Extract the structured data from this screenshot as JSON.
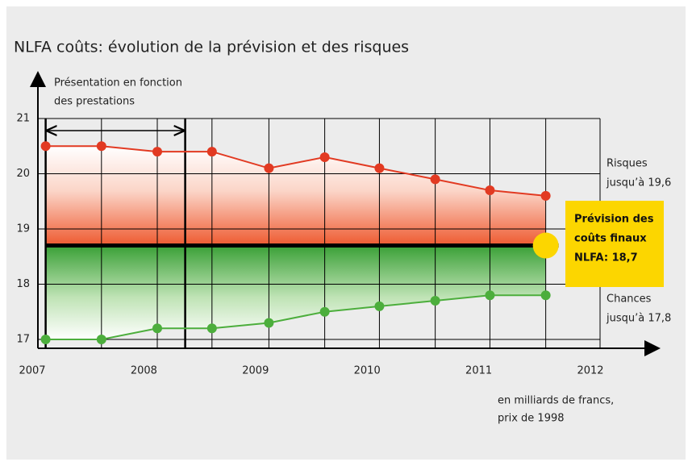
{
  "chart_data": {
    "type": "line",
    "title": "NLFA coûts: évolution de la prévision et des risques",
    "x": [
      2007.12,
      2007.62,
      2008.12,
      2008.61,
      2009.12,
      2009.62,
      2010.11,
      2010.61,
      2011.1,
      2011.6
    ],
    "series": [
      {
        "name": "Risques",
        "color": "#e23a22",
        "values": [
          20.5,
          20.5,
          20.4,
          20.4,
          20.1,
          20.3,
          20.1,
          19.9,
          19.7,
          19.6
        ]
      },
      {
        "name": "Chances",
        "color": "#4cae3c",
        "values": [
          17.0,
          17.0,
          17.2,
          17.2,
          17.3,
          17.5,
          17.6,
          17.7,
          17.8,
          17.8
        ]
      }
    ],
    "forecast": {
      "value": 18.7,
      "color": "#000000",
      "box_color": "#fcd600",
      "label_lines": [
        "Prévision des",
        "coûts finaux",
        "NLFA: 18,7"
      ]
    },
    "risk_label_lines": [
      "Risques",
      "jusqu’à 19,6"
    ],
    "chance_label_lines": [
      "Chances",
      "jusqu’à 17,8"
    ],
    "presentation": {
      "label_lines": [
        "Présentation en fonction",
        "des prestations"
      ],
      "span": [
        2007.12,
        2008.37
      ]
    },
    "unit_lines": [
      "en milliards de francs,",
      "prix de 1998"
    ],
    "xlim": [
      2007,
      2012
    ],
    "xticks": [
      2007,
      2008,
      2009,
      2010,
      2011,
      2012
    ],
    "ylim": [
      17,
      21
    ],
    "yticks": [
      17,
      18,
      19,
      20,
      21
    ],
    "grid": true
  }
}
